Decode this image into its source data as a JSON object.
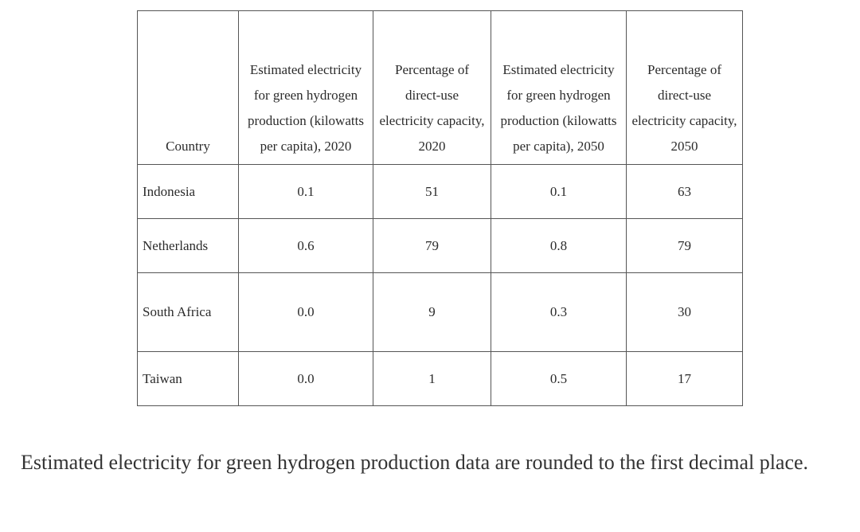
{
  "table": {
    "header": [
      "Country",
      "Estimated electricity for green hydrogen production (kilowatts per capita), 2020",
      "Percentage of direct-use electricity capacity, 2020",
      "Estimated electricity for green hydrogen production (kilowatts per capita), 2050",
      "Percentage of direct-use electricity capacity, 2050"
    ],
    "rows": [
      [
        "Indonesia",
        "0.1",
        "51",
        "0.1",
        "63"
      ],
      [
        "Netherlands",
        "0.6",
        "79",
        "0.8",
        "79"
      ],
      [
        "South Africa",
        "0.0",
        "9",
        "0.3",
        "30"
      ],
      [
        "Taiwan",
        "0.0",
        "1",
        "0.5",
        "17"
      ]
    ]
  },
  "note": "Estimated electricity for green hydrogen production data are rounded to the first decimal place."
}
